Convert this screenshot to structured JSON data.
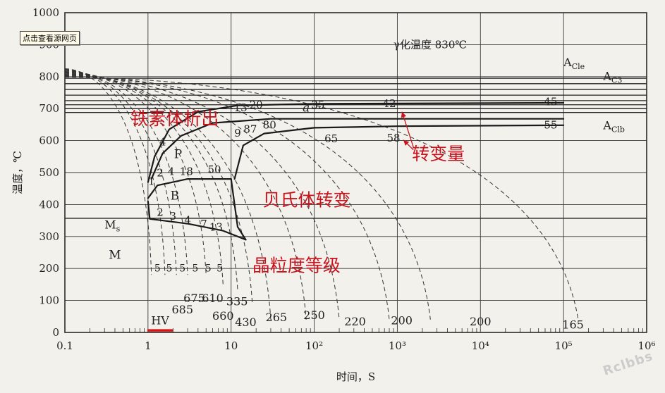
{
  "source_link": {
    "label": "点击查看源网页"
  },
  "watermark": "Rclbbs",
  "chart_data": {
    "type": "line",
    "title": "γ化温度 830℃",
    "xlabel": "时间，S",
    "ylabel": "温度，℃",
    "x_scale": "log",
    "xlim": [
      0.1,
      1000000
    ],
    "ylim": [
      0,
      1000
    ],
    "x_ticks": [
      {
        "value": 0.1,
        "label": "0.1"
      },
      {
        "value": 1,
        "label": "1"
      },
      {
        "value": 10,
        "label": "10"
      },
      {
        "value": 100,
        "label": "10²"
      },
      {
        "value": 1000,
        "label": "10³"
      },
      {
        "value": 10000,
        "label": "10⁴"
      },
      {
        "value": 100000,
        "label": "10⁵"
      },
      {
        "value": 1000000,
        "label": "10⁶"
      }
    ],
    "y_ticks": [
      0,
      100,
      200,
      300,
      400,
      500,
      600,
      700,
      800,
      900,
      1000
    ],
    "grid": true,
    "critical_lines": [
      {
        "label": "A_C1e",
        "name": "A",
        "sub": "Cle",
        "y": 778,
        "label_pos": [
          100000,
          833
        ]
      },
      {
        "label": "A_C3",
        "name": "A",
        "sub": "C3",
        "y": 760,
        "label_pos": [
          300000,
          790
        ]
      },
      {
        "label": "A_C1b",
        "name": "A",
        "sub": "Clb",
        "y": 688,
        "label_pos": [
          300000,
          636
        ]
      },
      {
        "label": "M_s",
        "name": "M",
        "sub": "s",
        "y": 357,
        "label_pos": [
          0.3,
          325
        ]
      }
    ],
    "extra_isotherms": [
      795,
      742,
      725,
      712,
      700
    ],
    "curves": {
      "ferrite_start": [
        [
          1.0,
          470
        ],
        [
          1.2,
          550
        ],
        [
          1.8,
          635
        ],
        [
          4,
          690
        ],
        [
          12,
          710
        ],
        [
          100,
          715
        ],
        [
          100000,
          718
        ]
      ],
      "ferrite_mid": [
        [
          1.1,
          480
        ],
        [
          1.5,
          560
        ],
        [
          2.5,
          615
        ],
        [
          6,
          655
        ],
        [
          30,
          668
        ],
        [
          100000,
          668
        ]
      ],
      "pearlite_finish": [
        [
          11,
          480
        ],
        [
          14,
          585
        ],
        [
          25,
          622
        ],
        [
          100,
          640
        ],
        [
          1000,
          645
        ],
        [
          100000,
          648
        ]
      ],
      "bainite_start": [
        [
          1.0,
          420
        ],
        [
          1.3,
          460
        ],
        [
          3,
          480
        ],
        [
          10,
          480
        ]
      ],
      "martensite_start": [
        [
          1.0,
          410
        ],
        [
          1.05,
          355
        ],
        [
          3,
          340
        ],
        [
          8,
          318
        ],
        [
          15,
          290
        ]
      ],
      "pearlite_bainite_boundary": [
        [
          10,
          480
        ],
        [
          12,
          330
        ],
        [
          15,
          290
        ]
      ]
    },
    "dashed_cooling_curves": [
      {
        "end_x": 1.1,
        "end_y": 180
      },
      {
        "end_x": 1.6,
        "end_y": 180
      },
      {
        "end_x": 2.2,
        "end_y": 180
      },
      {
        "end_x": 3.0,
        "end_y": 180
      },
      {
        "end_x": 5.0,
        "end_y": 180
      },
      {
        "end_x": 8.0,
        "end_y": 150
      },
      {
        "end_x": 12,
        "end_y": 130
      },
      {
        "end_x": 18,
        "end_y": 90
      },
      {
        "end_x": 30,
        "end_y": 40
      },
      {
        "end_x": 80,
        "end_y": 40
      },
      {
        "end_x": 200,
        "end_y": 40
      },
      {
        "end_x": 800,
        "end_y": 40
      },
      {
        "end_x": 2500,
        "end_y": 40
      },
      {
        "end_x": 150000,
        "end_y": 40
      }
    ],
    "region_labels": [
      {
        "text": "P",
        "x": 2.3,
        "y": 545
      },
      {
        "text": "B",
        "x": 2.1,
        "y": 415
      },
      {
        "text": "M",
        "x": 0.4,
        "y": 230
      },
      {
        "text": "a",
        "x": 80,
        "y": 690
      }
    ],
    "transformation_numbers": [
      {
        "text": "1",
        "x": 1.1,
        "y": 462
      },
      {
        "text": "2",
        "x": 1.4,
        "y": 488
      },
      {
        "text": "4",
        "x": 1.9,
        "y": 492
      },
      {
        "text": "18",
        "x": 2.9,
        "y": 492
      },
      {
        "text": "50",
        "x": 6.3,
        "y": 498
      },
      {
        "text": "4",
        "x": 1.5,
        "y": 585
      },
      {
        "text": "9",
        "x": 12,
        "y": 612
      },
      {
        "text": "87",
        "x": 17,
        "y": 625
      },
      {
        "text": "80",
        "x": 29,
        "y": 638
      },
      {
        "text": "13",
        "x": 13,
        "y": 692
      },
      {
        "text": "20",
        "x": 20,
        "y": 700
      },
      {
        "text": "35",
        "x": 111,
        "y": 700
      },
      {
        "text": "42",
        "x": 800,
        "y": 705
      },
      {
        "text": "65",
        "x": 160,
        "y": 595
      },
      {
        "text": "58",
        "x": 900,
        "y": 597
      },
      {
        "text": "45",
        "x": 70000,
        "y": 710
      },
      {
        "text": "55",
        "x": 70000,
        "y": 638
      },
      {
        "text": "2",
        "x": 1.4,
        "y": 365
      },
      {
        "text": "3",
        "x": 2.0,
        "y": 352
      },
      {
        "text": "4",
        "x": 3.0,
        "y": 340
      },
      {
        "text": "7",
        "x": 4.7,
        "y": 328
      },
      {
        "text": "13",
        "x": 6.6,
        "y": 318
      }
    ],
    "grain_size_numbers": [
      {
        "text": "5",
        "x": 1.3,
        "y": 190
      },
      {
        "text": "5",
        "x": 1.8,
        "y": 190
      },
      {
        "text": "5",
        "x": 2.6,
        "y": 190
      },
      {
        "text": "5",
        "x": 3.7,
        "y": 190
      },
      {
        "text": "5",
        "x": 5.3,
        "y": 190
      },
      {
        "text": "5",
        "x": 7.3,
        "y": 190
      }
    ],
    "hardness_values": [
      {
        "text": "HV",
        "x": 1.4,
        "y": 25
      },
      {
        "text": "685",
        "x": 2.6,
        "y": 60
      },
      {
        "text": "675",
        "x": 3.6,
        "y": 95
      },
      {
        "text": "610",
        "x": 6.0,
        "y": 95
      },
      {
        "text": "335",
        "x": 11.8,
        "y": 85
      },
      {
        "text": "660",
        "x": 8.0,
        "y": 40
      },
      {
        "text": "430",
        "x": 15,
        "y": 20
      },
      {
        "text": "265",
        "x": 35,
        "y": 35
      },
      {
        "text": "250",
        "x": 100,
        "y": 42
      },
      {
        "text": "220",
        "x": 310,
        "y": 22
      },
      {
        "text": "200",
        "x": 1130,
        "y": 25
      },
      {
        "text": "200",
        "x": 10000,
        "y": 22
      },
      {
        "text": "165",
        "x": 130000,
        "y": 12
      }
    ],
    "annotations": [
      {
        "text": "铁素体析出",
        "x": 0.62,
        "y": 650
      },
      {
        "text": "转变量",
        "x": 1500,
        "y": 540
      },
      {
        "text": "贝氏体转变",
        "x": 24,
        "y": 395
      },
      {
        "text": "晶粒度等级",
        "x": 18,
        "y": 190
      }
    ],
    "colors": {
      "axis": "#2a2a2a",
      "grid": "#3a3a3a",
      "annotation": "#c8141e",
      "hv_underline": "#e01010",
      "background": "#f3f1ec"
    }
  }
}
